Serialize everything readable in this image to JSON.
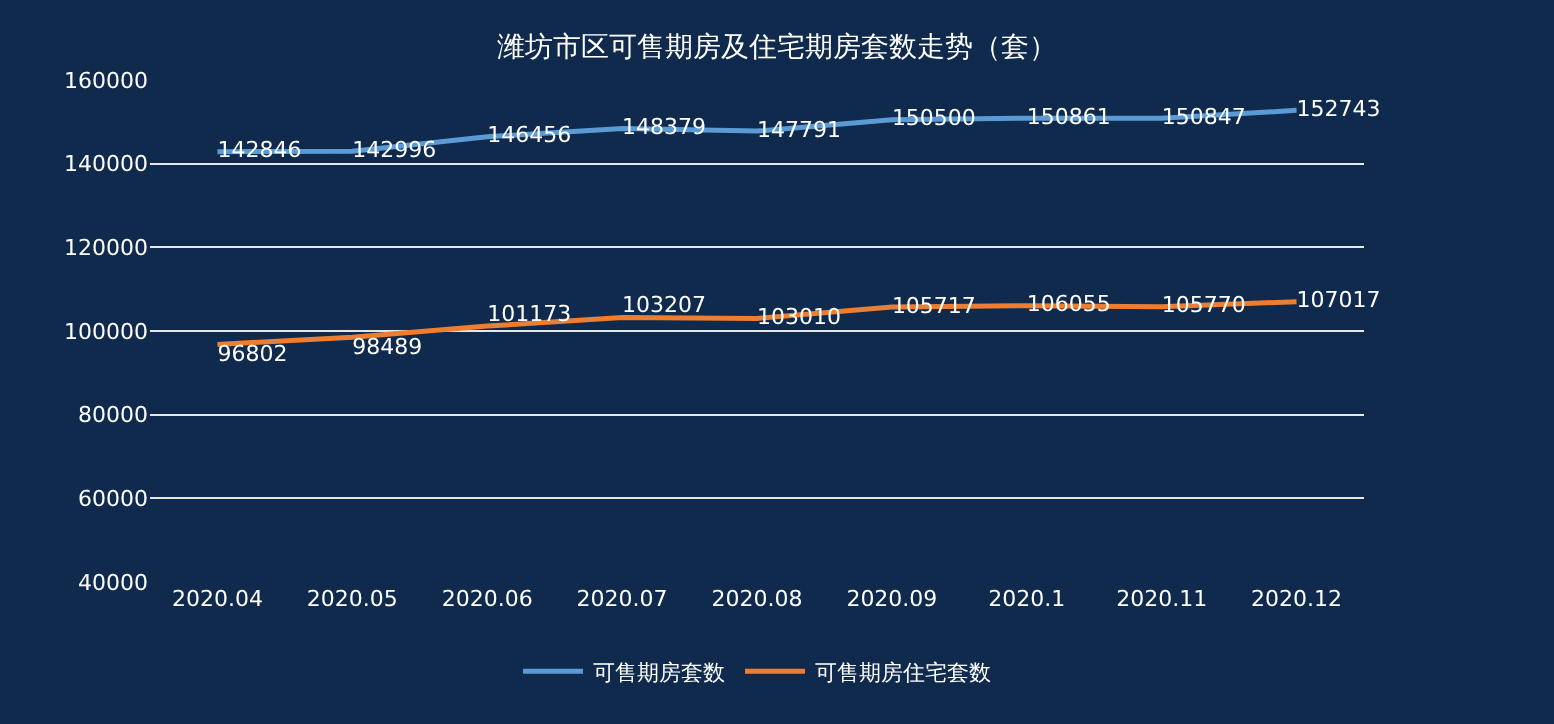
{
  "chart_data": {
    "type": "line",
    "title": "潍坊市区可售期房及住宅期房套数走势（套）",
    "categories": [
      "2020.04",
      "2020.05",
      "2020.06",
      "2020.07",
      "2020.08",
      "2020.09",
      "2020.1",
      "2020.11",
      "2020.12"
    ],
    "series": [
      {
        "name": "可售期房套数",
        "color": "#5b9bd5",
        "values": [
          142846,
          142996,
          146456,
          148379,
          147791,
          150500,
          150861,
          150847,
          152743
        ]
      },
      {
        "name": "可售期房住宅套数",
        "color": "#ed7d31",
        "values": [
          96802,
          98489,
          101173,
          103207,
          103010,
          105717,
          106055,
          105770,
          107017
        ]
      }
    ],
    "ylim": [
      40000,
      160000
    ],
    "yticks": [
      40000,
      60000,
      80000,
      100000,
      120000,
      140000,
      160000
    ],
    "grid": "y",
    "legend": "bottom",
    "data_labels": true,
    "marker": "none",
    "line_style": "solid"
  }
}
